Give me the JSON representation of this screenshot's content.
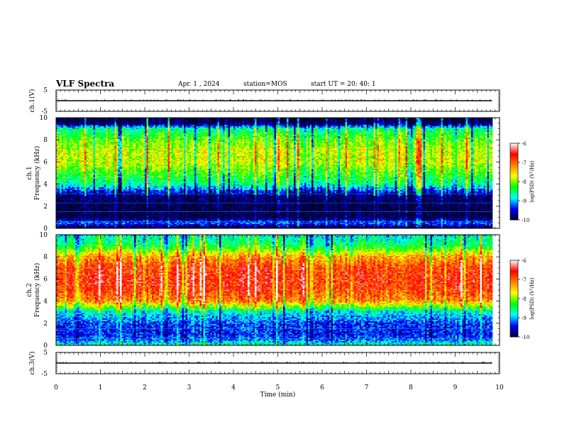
{
  "header": {
    "title": "VLF Spectra",
    "date": "Apr. 1 , 2024",
    "station": "station=MOS",
    "start": "start UT = 20: 40: 1"
  },
  "chart_data": [
    {
      "type": "line",
      "panel": "ch1-voltage",
      "ylabel": "ch.1(V)",
      "ylim": [
        -5,
        5
      ],
      "yticks": [
        "5",
        "-5"
      ],
      "xlim": [
        0,
        10
      ],
      "series": [
        {
          "values": [
            0,
            0,
            0,
            0,
            0,
            0,
            0,
            0,
            0,
            0,
            0
          ]
        }
      ],
      "grid": false
    },
    {
      "type": "heatmap",
      "panel": "ch1-spectrogram",
      "ylabel": "ch.1\nFrequency (kHz)",
      "ylim": [
        0,
        10
      ],
      "yticks": [
        "0",
        "2",
        "4",
        "6",
        "8",
        "10"
      ],
      "xlim": [
        0,
        10
      ],
      "x": [
        0,
        1,
        2,
        3,
        4,
        5,
        6,
        7,
        8,
        9,
        9.83
      ],
      "colorbar": {
        "label": "log(PSD) (V²/Hz)",
        "range": [
          -10,
          -6
        ],
        "ticks": [
          "-6",
          "-7",
          "-8",
          "-9",
          "-10"
        ]
      },
      "profile": {
        "freq_khz": [
          0,
          0.5,
          1,
          2,
          3,
          3.5,
          4,
          5,
          6,
          7,
          8,
          9,
          9.5,
          10
        ],
        "log_psd": [
          -10,
          -9.2,
          -10,
          -10,
          -9.8,
          -9.2,
          -8.6,
          -8.2,
          -7.8,
          -7.8,
          -8.1,
          -8.6,
          -10,
          -10
        ]
      }
    },
    {
      "type": "heatmap",
      "panel": "ch2-spectrogram",
      "ylabel": "ch.2\nFrequency (kHz)",
      "ylim": [
        0,
        10
      ],
      "yticks": [
        "0",
        "2",
        "4",
        "6",
        "8",
        "10"
      ],
      "xlim": [
        0,
        10
      ],
      "x": [
        0,
        1,
        2,
        3,
        4,
        5,
        6,
        7,
        8,
        9,
        9.83
      ],
      "colorbar": {
        "label": "log(PSD) (V²/Hz)",
        "range": [
          -10,
          -6
        ],
        "ticks": [
          "-6",
          "-7",
          "-8",
          "-9",
          "-10"
        ]
      },
      "profile": {
        "freq_khz": [
          0,
          0.5,
          1,
          2,
          3,
          3.5,
          4,
          5,
          6,
          7,
          8,
          9,
          10
        ],
        "log_psd": [
          -8.6,
          -9.2,
          -9.4,
          -9.3,
          -8.8,
          -8.0,
          -7.2,
          -6.8,
          -6.7,
          -6.8,
          -7.3,
          -8.4,
          -8.8
        ]
      }
    },
    {
      "type": "line",
      "panel": "ch3-voltage",
      "ylabel": "ch.3(V)",
      "ylim": [
        -5,
        5
      ],
      "yticks": [
        "5",
        "-5"
      ],
      "xlim": [
        0,
        10
      ],
      "series": [
        {
          "values": [
            0,
            0,
            0,
            0,
            0,
            0,
            0,
            0,
            0,
            0,
            0
          ]
        }
      ],
      "grid": false
    }
  ],
  "xaxis": {
    "label": "Time (min)",
    "ticks": [
      "0",
      "1",
      "2",
      "3",
      "4",
      "5",
      "6",
      "7",
      "8",
      "9",
      "10"
    ],
    "range": [
      0,
      10
    ],
    "data_end": 9.83
  },
  "colors": {
    "colormap": [
      "#000033",
      "#0000ff",
      "#00ffff",
      "#00ff00",
      "#ffff00",
      "#ff8000",
      "#ff0000",
      "#ffffff"
    ]
  }
}
